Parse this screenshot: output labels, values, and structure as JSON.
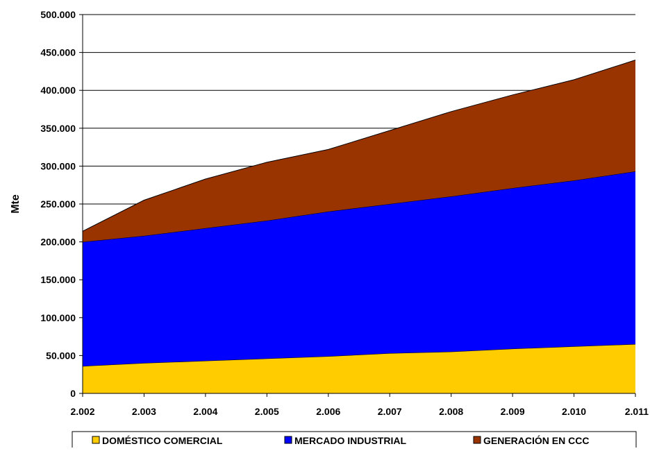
{
  "chart_data": {
    "type": "area",
    "stacked": true,
    "title": "",
    "xlabel": "",
    "ylabel": "Mte",
    "categories": [
      "2.002",
      "2.003",
      "2.004",
      "2.005",
      "2.006",
      "2.007",
      "2.008",
      "2.009",
      "2.010",
      "2.011"
    ],
    "ylim": [
      0,
      500000
    ],
    "yticks": [
      0,
      50000,
      100000,
      150000,
      200000,
      250000,
      300000,
      350000,
      400000,
      450000,
      500000
    ],
    "ytick_labels": [
      "0",
      "50.000",
      "100.000",
      "150.000",
      "200.000",
      "250.000",
      "300.000",
      "350.000",
      "400.000",
      "450.000",
      "500.000"
    ],
    "grid": "horizontal",
    "legend_position": "bottom",
    "series": [
      {
        "name": "DOMÉSTICO COMERCIAL",
        "color": "#FFCC00",
        "values": [
          36000,
          40000,
          43000,
          46000,
          49000,
          53000,
          55000,
          59000,
          62000,
          65000
        ]
      },
      {
        "name": "MERCADO INDUSTRIAL",
        "color": "#0000FF",
        "values": [
          164000,
          168000,
          175000,
          182000,
          191000,
          197000,
          205000,
          212000,
          219000,
          228000
        ]
      },
      {
        "name": "GENERACIÓN EN CCC",
        "color": "#993300",
        "values": [
          14000,
          47000,
          65000,
          77000,
          82000,
          97000,
          112000,
          123000,
          133000,
          147000
        ]
      }
    ]
  }
}
